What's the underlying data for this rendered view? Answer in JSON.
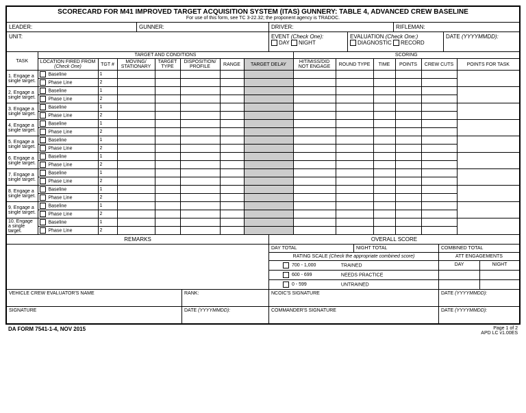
{
  "title": {
    "main": "SCORECARD FOR M41 IMPROVED TARGET ACQUISITION SYSTEM (ITAS) GUNNERY:  TABLE 4, ADVANCED CREW BASELINE",
    "sub": "For use of this form, see TC 3-22.32; the proponent agency is TRADOC."
  },
  "header": {
    "leader": "LEADER:",
    "gunner": "GUNNER:",
    "driver": "DRIVER:",
    "rifleman": "RIFLEMAN:",
    "unit": "UNIT:",
    "event_label": "EVENT",
    "event_suffix": "(Check One):",
    "day": "DAY",
    "night": "NIGHT",
    "eval_label": "EVALUATION",
    "eval_suffix": "(Check One:)",
    "diagnostic": "DIAGNOSTIC",
    "record": "RECORD",
    "date_label": "DATE",
    "date_suffix": "(YYYYMMDD):"
  },
  "sections": {
    "task": "TASK",
    "target_conditions": "TARGET AND CONDITIONS",
    "scoring": "SCORING"
  },
  "columns": {
    "location": "LOCATION FIRED FROM",
    "location_suffix": "(Check One)",
    "tgt": "TGT #",
    "moving": "MOVING/ STATIONARY",
    "tgt_type": "TARGET TYPE",
    "disposition": "DISPOSITION/ PROFILE",
    "range": "RANGE",
    "delay": "TARGET DELAY",
    "hit": "HIT/MISS/DID NOT ENGAGE",
    "round": "ROUND TYPE",
    "time": "TIME",
    "points": "POINTS",
    "crew": "CREW CUTS",
    "pft": "POINTS FOR TASK"
  },
  "location_options": {
    "baseline": "Baseline",
    "phase": "Phase Line"
  },
  "tasks": [
    "1. Engage a single target.",
    "2. Engage a single target.",
    "3. Engage a single target.",
    "4. Engage a single target.",
    "5. Engage a single target.",
    "6. Engage a single target.",
    "7. Engage a single target.",
    "8. Engage a single target.",
    "9. Engage a single target.",
    "10. Engage a single target."
  ],
  "tgt_nums": [
    "1",
    "2"
  ],
  "remarks": "REMARKS",
  "overall_score": "OVERALL SCORE",
  "totals": {
    "day_total": "DAY TOTAL",
    "night_total": "NIGHT TOTAL",
    "combined_total": "COMBINED TOTAL",
    "rating_scale": "RATING SCALE",
    "rating_suffix": "(Check the appropriate combined score)",
    "att": "ATT ENGAGEMENTS",
    "att_day": "DAY",
    "att_night": "NIGHT",
    "range1": "700 - 1,000",
    "rating1": "TRAINED",
    "range2": "600 - 699",
    "rating2": "NEEDS PRACTICE",
    "range3": "0 - 599",
    "rating3": "UNTRAINED"
  },
  "signatures": {
    "evaluator": "VEHICLE CREW EVALUATOR'S NAME",
    "rank": "RANK:",
    "ncoic": "NCOIC'S SIGNATURE",
    "signature": "SIGNATURE",
    "commander": "COMMANDER'S SIGNATURE",
    "date_label": "DATE",
    "date_suffix": "(YYYYMMDD):"
  },
  "footer": {
    "form": "DA FORM 7541-1-4, NOV 2015",
    "page": "Page 1 of 2",
    "apd": "APD LC v1.00ES"
  }
}
